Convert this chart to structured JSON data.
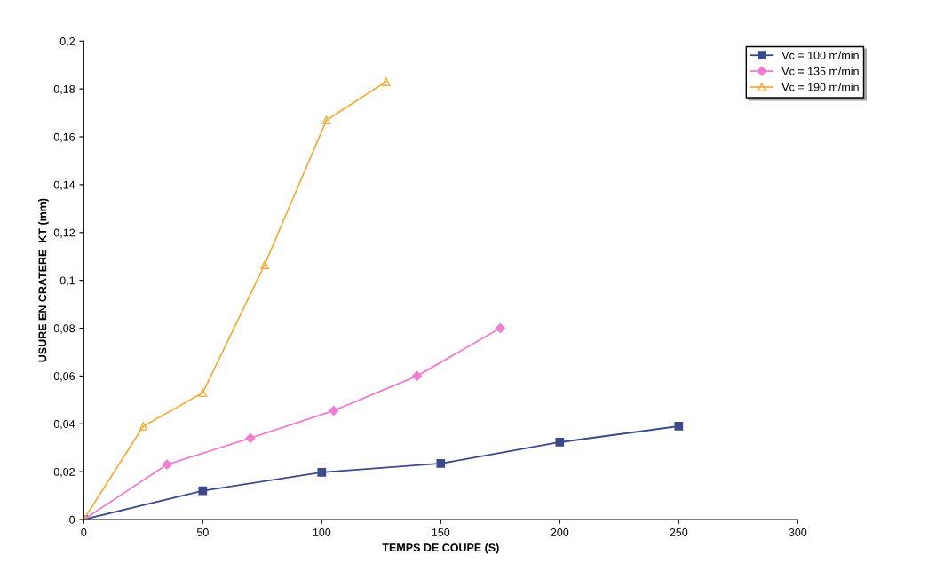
{
  "chart_data": {
    "type": "line",
    "xlabel": "TEMPS DE COUPE (S)",
    "ylabel": "USURE EN CRATERE  KT (mm)",
    "xlim": [
      0,
      300
    ],
    "xticks": [
      0,
      50,
      100,
      150,
      200,
      250,
      300
    ],
    "ylim": [
      0,
      0.2
    ],
    "yticks": [
      {
        "value": 0,
        "label": "0"
      },
      {
        "value": 0.02,
        "label": "0,02"
      },
      {
        "value": 0.04,
        "label": "0,04"
      },
      {
        "value": 0.06,
        "label": "0,06"
      },
      {
        "value": 0.08,
        "label": "0,08"
      },
      {
        "value": 0.1,
        "label": "0,1"
      },
      {
        "value": 0.12,
        "label": "0,12"
      },
      {
        "value": 0.14,
        "label": "0,14"
      },
      {
        "value": 0.16,
        "label": "0,16"
      },
      {
        "value": 0.18,
        "label": "0,18"
      },
      {
        "value": 0.2,
        "label": "0,2"
      }
    ],
    "grid": false,
    "legend": "top right",
    "series": [
      {
        "name": "Vc = 100 m/min",
        "color": "#3a4a8c",
        "marker": "square",
        "x": [
          0,
          50,
          100,
          150,
          200,
          250
        ],
        "values": [
          0,
          0.012,
          0.0197,
          0.0234,
          0.0323,
          0.039
        ]
      },
      {
        "name": "Vc = 135 m/min",
        "color": "#ee7fd0",
        "marker": "diamond",
        "x": [
          0,
          35,
          70,
          105,
          140,
          175
        ],
        "values": [
          0,
          0.023,
          0.034,
          0.0455,
          0.06,
          0.08
        ]
      },
      {
        "name": "Vc = 190 m/min",
        "color": "#f0b040",
        "marker": "triangle",
        "x": [
          0,
          25,
          50,
          76,
          102,
          127
        ],
        "values": [
          0,
          0.039,
          0.053,
          0.1065,
          0.167,
          0.183
        ]
      }
    ]
  }
}
